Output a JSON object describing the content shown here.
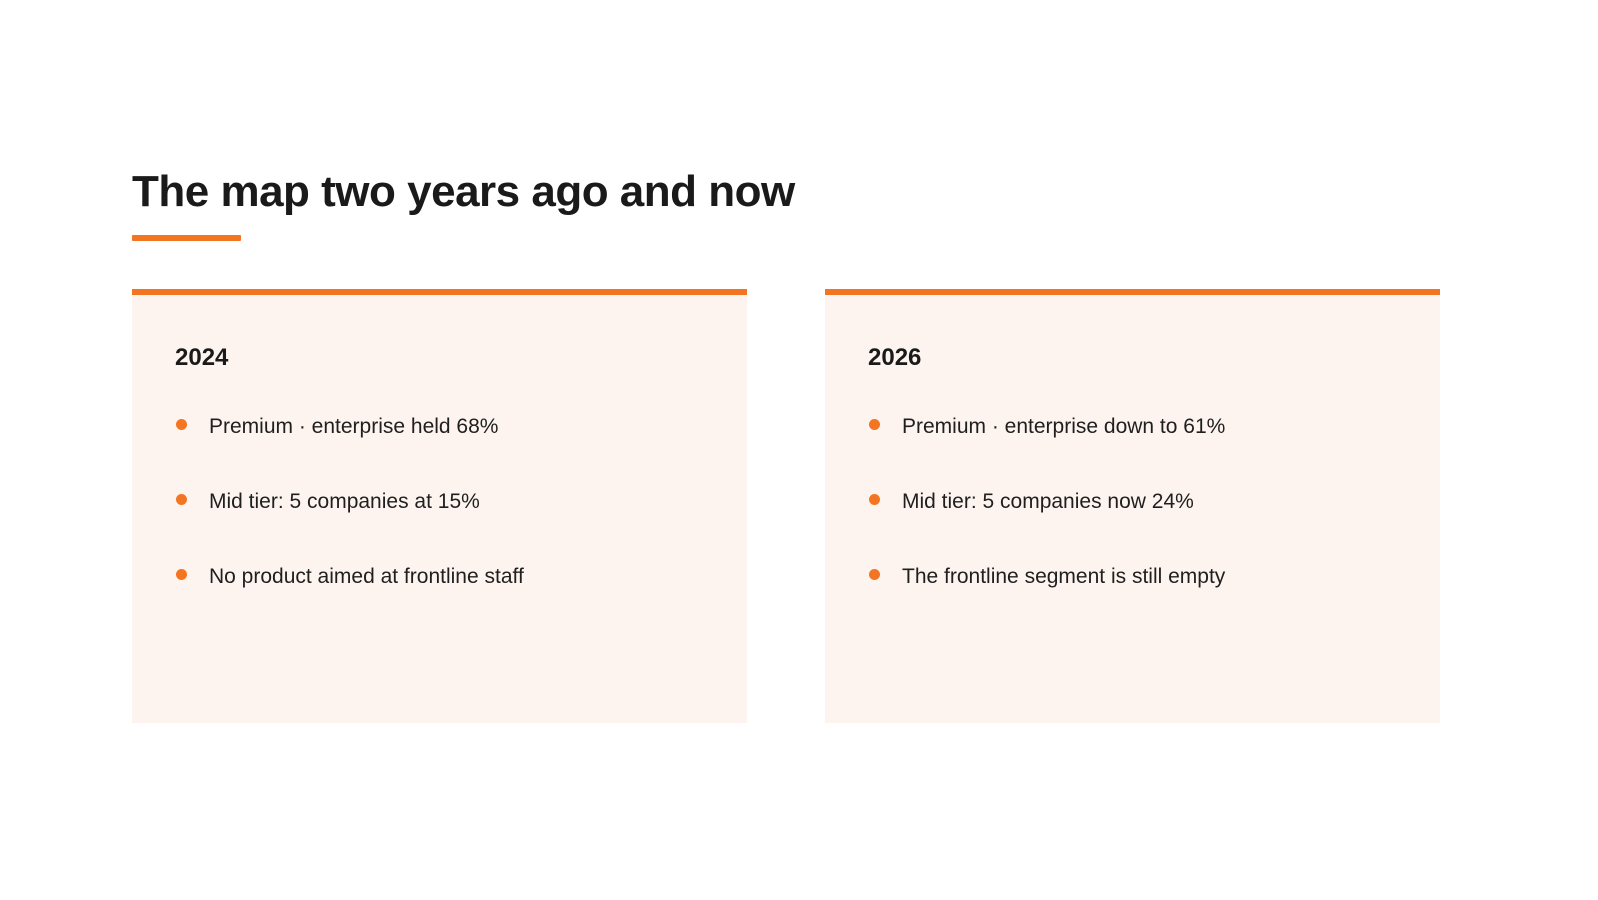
{
  "title": "The map two years ago and now",
  "colors": {
    "accent": "#f47521",
    "card_background": "#fdf4ef",
    "text": "#1a1a1a"
  },
  "cards": [
    {
      "year": "2024",
      "bullets": [
        "Premium · enterprise held 68%",
        "Mid tier: 5 companies at 15%",
        "No product aimed at frontline staff"
      ]
    },
    {
      "year": "2026",
      "bullets": [
        "Premium · enterprise down to 61%",
        "Mid tier: 5 companies now 24%",
        "The frontline segment is still empty"
      ]
    }
  ]
}
